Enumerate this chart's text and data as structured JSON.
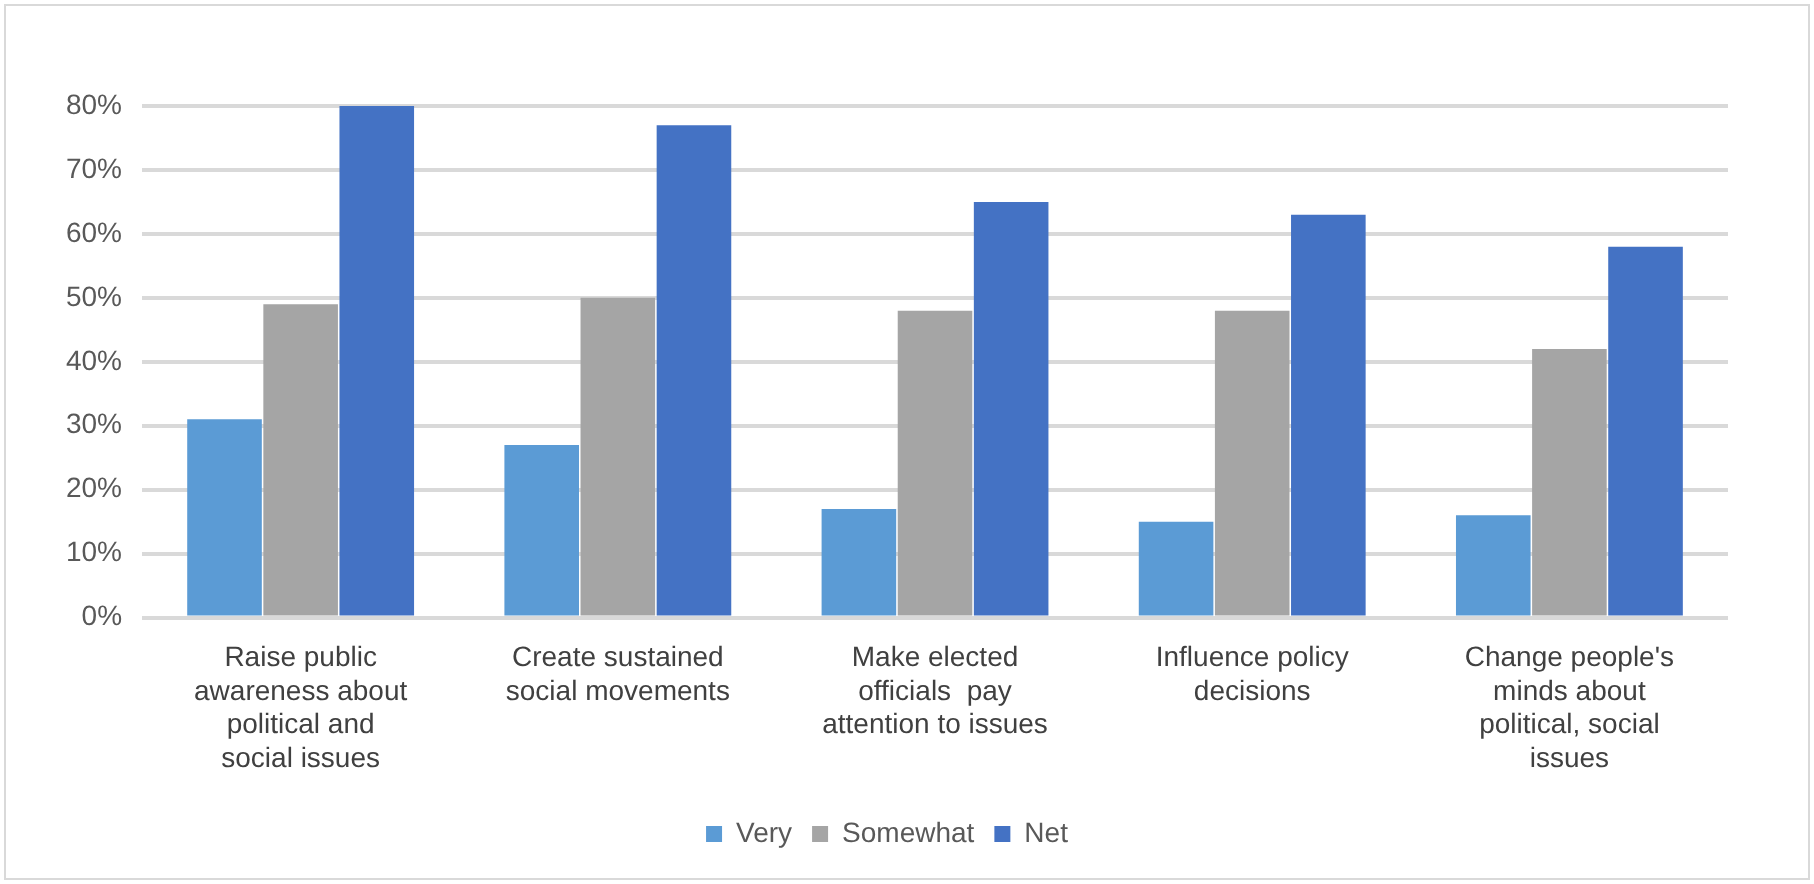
{
  "chart_data": {
    "type": "bar",
    "categories": [
      "Raise public awareness about political and social issues",
      "Create sustained social movements",
      "Make elected officials  pay attention to issues",
      "Influence policy decisions",
      "Change people's minds about political, social issues"
    ],
    "series": [
      {
        "name": "Very",
        "color": "#5b9bd5",
        "values": [
          31,
          27,
          17,
          15,
          16
        ]
      },
      {
        "name": "Somewhat",
        "color": "#a5a5a5",
        "values": [
          49,
          50,
          48,
          48,
          42
        ]
      },
      {
        "name": "Net",
        "color": "#4472c4",
        "values": [
          80,
          77,
          65,
          63,
          58
        ]
      }
    ],
    "ylim": [
      0,
      80
    ],
    "yticks": [
      {
        "value": 0,
        "label": "0%"
      },
      {
        "value": 10,
        "label": "10%"
      },
      {
        "value": 20,
        "label": "20%"
      },
      {
        "value": 30,
        "label": "30%"
      },
      {
        "value": 40,
        "label": "40%"
      },
      {
        "value": 50,
        "label": "50%"
      },
      {
        "value": 60,
        "label": "60%"
      },
      {
        "value": 70,
        "label": "70%"
      },
      {
        "value": 80,
        "label": "80%"
      }
    ],
    "grid": "y",
    "legend": "bottom"
  }
}
